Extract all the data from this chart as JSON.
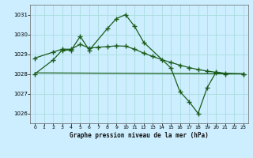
{
  "title": "Graphe pression niveau de la mer (hPa)",
  "bg_color": "#cceeff",
  "grid_color": "#aadddd",
  "line_color": "#1a5c1a",
  "xlim": [
    -0.5,
    23.5
  ],
  "ylim": [
    1025.5,
    1031.5
  ],
  "yticks": [
    1026,
    1027,
    1028,
    1029,
    1030,
    1031
  ],
  "xticks": [
    0,
    1,
    2,
    3,
    4,
    5,
    6,
    7,
    8,
    9,
    10,
    11,
    12,
    13,
    14,
    15,
    16,
    17,
    18,
    19,
    20,
    21,
    22,
    23
  ],
  "line1_x": [
    0,
    2,
    3,
    4,
    5,
    6,
    8,
    9,
    10,
    11,
    12,
    15,
    16,
    17,
    18,
    19,
    20,
    21,
    23
  ],
  "line1_y": [
    1028.0,
    1028.7,
    1029.2,
    1029.2,
    1029.9,
    1029.2,
    1030.3,
    1030.8,
    1031.0,
    1030.4,
    1029.6,
    1028.3,
    1027.1,
    1026.6,
    1026.0,
    1027.3,
    1028.1,
    1028.0,
    1028.0
  ],
  "line2_x": [
    0,
    2,
    3,
    4,
    5,
    6,
    7,
    8,
    9,
    10,
    11,
    12,
    13,
    14,
    15,
    16,
    17,
    18,
    19,
    20,
    21,
    23
  ],
  "line2_y": [
    1028.8,
    1029.1,
    1029.25,
    1029.25,
    1029.5,
    1029.3,
    1029.35,
    1029.38,
    1029.42,
    1029.4,
    1029.25,
    1029.05,
    1028.88,
    1028.72,
    1028.58,
    1028.44,
    1028.32,
    1028.22,
    1028.14,
    1028.08,
    1028.03,
    1028.0
  ],
  "line3_x": [
    0,
    23
  ],
  "line3_y": [
    1028.05,
    1028.0
  ]
}
